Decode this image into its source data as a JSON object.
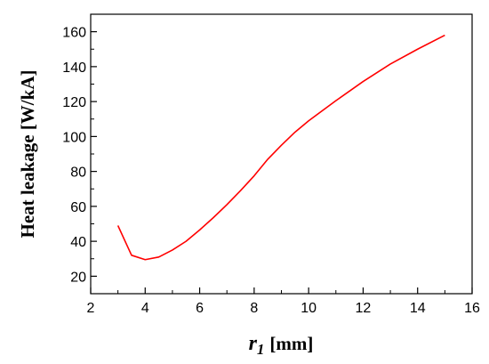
{
  "chart_data": {
    "type": "line",
    "xlabel_main": "r",
    "xlabel_sub": "1",
    "xlabel_unit": "[mm]",
    "ylabel": "Heat leakage  [W/kA]",
    "xlim": [
      2,
      16
    ],
    "ylim": [
      10,
      170
    ],
    "xticks": [
      2,
      4,
      6,
      8,
      10,
      12,
      14,
      16
    ],
    "yticks": [
      20,
      40,
      60,
      80,
      100,
      120,
      140,
      160
    ],
    "grid": false,
    "line_color": "#ff0000",
    "series": [
      {
        "x": [
          3.0,
          3.5,
          4.0,
          4.5,
          5.0,
          5.5,
          6.0,
          6.5,
          7.0,
          7.5,
          8.0,
          8.5,
          9.0,
          9.5,
          10.0,
          11.0,
          12.0,
          13.0,
          14.0,
          15.0
        ],
        "values": [
          49.0,
          32.0,
          29.5,
          31.0,
          35.0,
          40.0,
          46.5,
          53.5,
          61.0,
          69.0,
          77.5,
          87.0,
          95.0,
          102.5,
          109.0,
          120.5,
          131.5,
          141.5,
          150.0,
          158.0
        ]
      }
    ]
  }
}
